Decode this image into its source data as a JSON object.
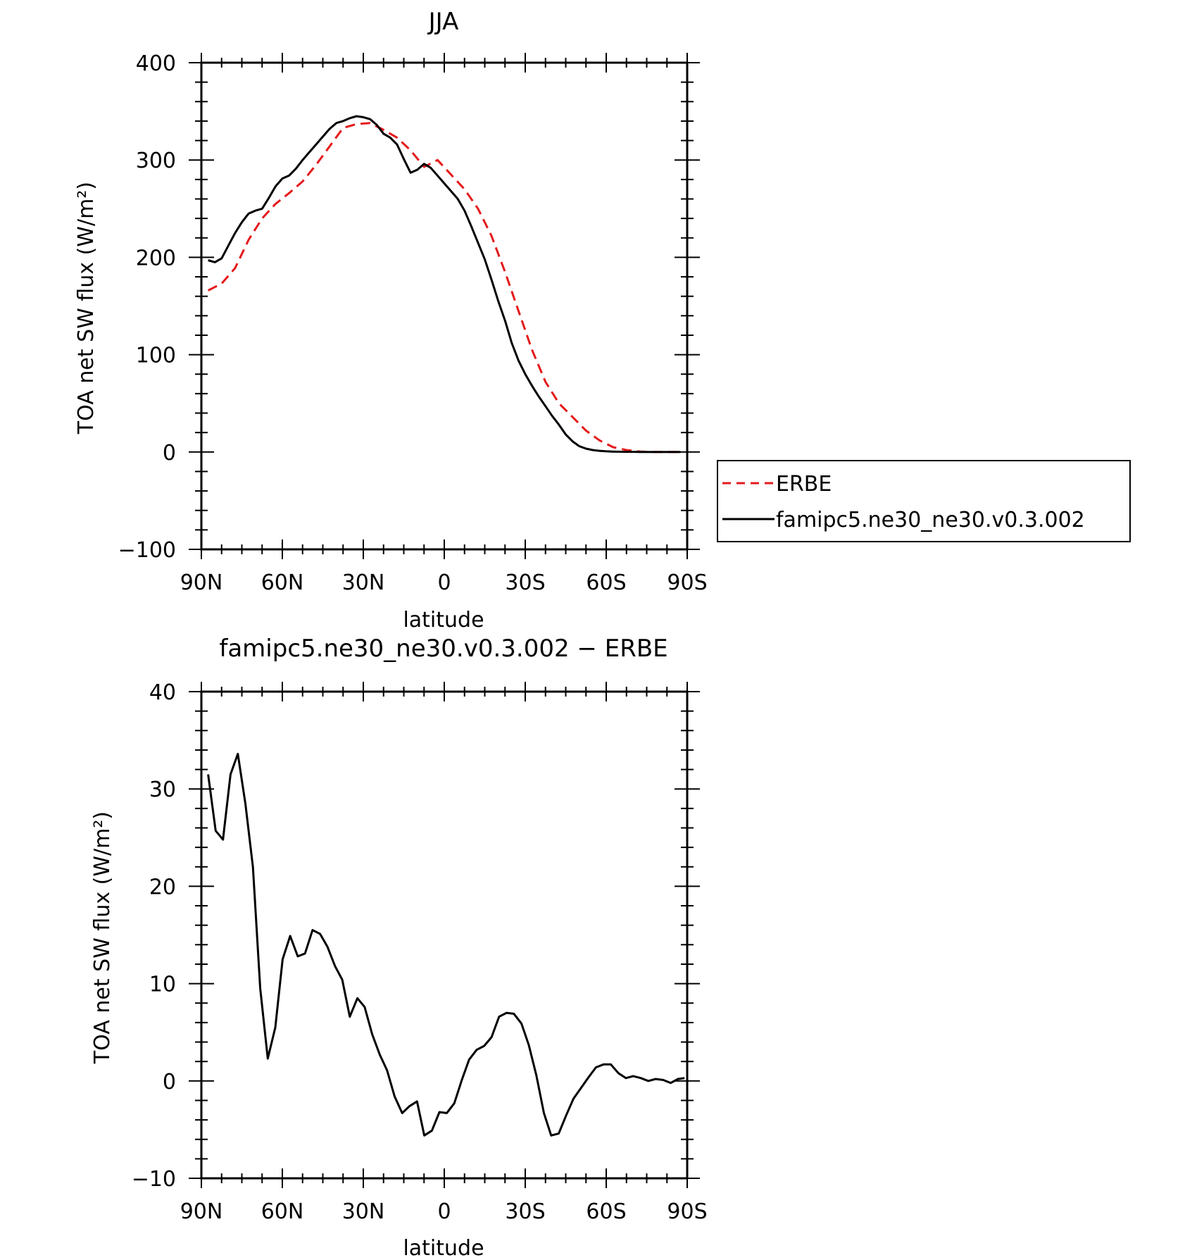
{
  "chart_data": [
    {
      "type": "line",
      "title": "JJA",
      "xlabel": "latitude",
      "ylabel": "TOA net SW flux (W/m²)",
      "xlim": [
        90,
        -90
      ],
      "ylim": [
        -100,
        400
      ],
      "x_tick_values": [
        90,
        60,
        30,
        0,
        -30,
        -60,
        -90
      ],
      "x_tick_labels": [
        "90N",
        "60N",
        "30N",
        "0",
        "30S",
        "60S",
        "90S"
      ],
      "y_tick_labels": [
        "−100",
        "0",
        "100",
        "200",
        "300",
        "400"
      ],
      "y_tick_values": [
        -100,
        0,
        100,
        200,
        300,
        400
      ],
      "legend": {
        "placement": "right, outside plot",
        "entries": [
          "ERBE",
          "famipc5.ne30_ne30.v0.3.002"
        ]
      },
      "series": [
        {
          "name": "ERBE",
          "color": "#e41a1c",
          "style": "dashed",
          "x": [
            87.5,
            82.5,
            77.5,
            72.5,
            67.5,
            62.5,
            57.5,
            52.5,
            47.5,
            42.5,
            37.5,
            32.5,
            27.5,
            22.5,
            17.5,
            12.5,
            7.5,
            2.5,
            -2.5,
            -7.5,
            -12.5,
            -17.5,
            -22.5,
            -27.5,
            -32.5,
            -37.5,
            -42.5,
            -47.5,
            -52.5,
            -57.5,
            -62.5,
            -67.5,
            -72.5,
            -77.5,
            -82.5,
            -87.5
          ],
          "y": [
            166,
            173,
            189,
            218,
            240,
            255,
            266,
            278,
            295,
            314,
            333,
            337,
            338,
            331,
            323,
            310,
            293,
            300,
            285,
            270,
            250,
            222,
            185,
            145,
            105,
            72,
            50,
            36,
            22,
            12,
            5,
            2,
            0.5,
            0,
            0,
            0
          ]
        },
        {
          "name": "famipc5.ne30_ne30.v0.3.002",
          "color": "#000000",
          "style": "solid",
          "x": [
            87.5,
            85,
            82.5,
            80,
            77.5,
            75,
            72.5,
            70,
            67.5,
            65,
            62.5,
            60,
            57.5,
            55,
            52.5,
            50,
            47.5,
            45,
            42.5,
            40,
            37.5,
            35,
            32.5,
            30,
            27.5,
            25,
            22.5,
            20,
            17.5,
            15,
            12.5,
            10,
            7.5,
            5,
            2.5,
            0,
            -2.5,
            -5,
            -7.5,
            -10,
            -12.5,
            -15,
            -17.5,
            -20,
            -22.5,
            -25,
            -27.5,
            -30,
            -32.5,
            -35,
            -37.5,
            -40,
            -42.5,
            -45,
            -47.5,
            -50,
            -52.5,
            -55,
            -57.5,
            -60,
            -62.5,
            -65,
            -67.5,
            -70,
            -72.5,
            -75,
            -77.5,
            -80,
            -82.5,
            -85,
            -87.5
          ],
          "y": [
            197,
            195,
            199,
            212,
            225,
            236,
            245,
            248,
            250,
            261,
            273,
            281,
            284,
            291,
            300,
            308,
            316,
            324,
            332,
            338,
            340,
            343,
            345,
            344,
            342,
            336,
            327,
            323,
            316,
            301,
            287,
            290,
            296,
            292,
            284,
            276,
            268,
            260,
            248,
            232,
            215,
            198,
            177,
            155,
            135,
            112,
            94,
            80,
            68,
            57,
            47,
            37,
            28,
            18,
            11,
            6,
            3.5,
            2,
            1.2,
            0.7,
            0.4,
            0.3,
            0.2,
            0.2,
            0.1,
            0.1,
            0.1,
            0.1,
            0.1,
            0.1,
            0.1
          ]
        }
      ]
    },
    {
      "type": "line",
      "title": "famipc5.ne30_ne30.v0.3.002 − ERBE",
      "xlabel": "latitude",
      "ylabel": "TOA net SW flux (W/m²)",
      "xlim": [
        90,
        -90
      ],
      "ylim": [
        -10,
        40
      ],
      "x_tick_values": [
        90,
        60,
        30,
        0,
        -30,
        -60,
        -90
      ],
      "x_tick_labels": [
        "90N",
        "60N",
        "30N",
        "0",
        "30S",
        "60S",
        "90S"
      ],
      "y_tick_labels": [
        "−10",
        "0",
        "10",
        "20",
        "30",
        "40"
      ],
      "y_tick_values": [
        -10,
        0,
        10,
        20,
        30,
        40
      ],
      "series": [
        {
          "color": "#000000",
          "style": "solid",
          "x": [
            87.5,
            84.7,
            82.0,
            79.2,
            76.5,
            73.7,
            70.9,
            68.2,
            65.4,
            62.6,
            59.9,
            57.1,
            54.3,
            51.6,
            48.8,
            46.0,
            43.3,
            40.5,
            37.8,
            35.0,
            32.2,
            29.5,
            26.7,
            23.9,
            21.2,
            18.4,
            15.6,
            12.9,
            10.1,
            7.4,
            4.6,
            1.8,
            -0.9,
            -3.7,
            -6.5,
            -9.2,
            -12.0,
            -14.8,
            -17.5,
            -20.3,
            -23.1,
            -25.8,
            -28.6,
            -31.3,
            -34.1,
            -36.9,
            -39.6,
            -42.4,
            -45.2,
            -47.9,
            -50.7,
            -53.5,
            -56.2,
            -59.0,
            -61.7,
            -64.5,
            -67.3,
            -70.0,
            -72.8,
            -75.6,
            -78.3,
            -81.1,
            -83.9,
            -86.6,
            -89.0
          ],
          "y": [
            31.5,
            25.7,
            24.8,
            31.5,
            33.6,
            28.5,
            22.0,
            9.5,
            2.3,
            5.5,
            12.5,
            14.9,
            12.8,
            13.1,
            15.5,
            15.1,
            13.8,
            11.8,
            10.4,
            6.6,
            8.5,
            7.6,
            4.8,
            2.7,
            1.1,
            -1.6,
            -3.3,
            -2.6,
            -2.1,
            -5.6,
            -5.1,
            -3.2,
            -3.3,
            -2.3,
            0.1,
            2.2,
            3.2,
            3.6,
            4.5,
            6.6,
            7.0,
            6.9,
            5.9,
            3.7,
            0.6,
            -3.3,
            -5.6,
            -5.4,
            -3.5,
            -1.8,
            -0.7,
            0.4,
            1.4,
            1.7,
            1.7,
            0.8,
            0.3,
            0.5,
            0.3,
            0.0,
            0.2,
            0.1,
            -0.2,
            0.2,
            0.3
          ]
        }
      ]
    }
  ]
}
